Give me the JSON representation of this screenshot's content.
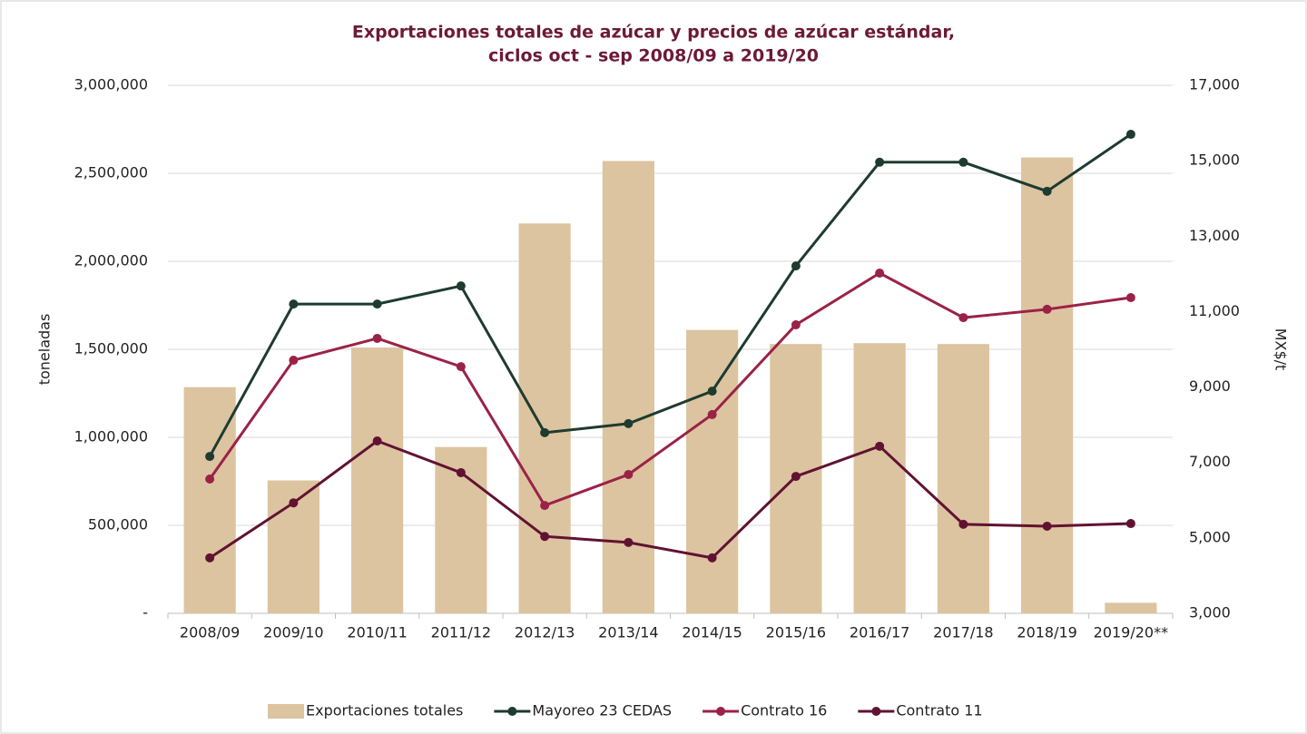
{
  "chart_data": {
    "type": "bar",
    "title": [
      "Exportaciones totales de azúcar y precios de azúcar estándar,",
      "ciclos oct - sep 2008/09 a 2019/20"
    ],
    "y_label": "toneladas",
    "y2_label": "MX$/t",
    "categories": [
      "2008/09",
      "2009/10",
      "2010/11",
      "2011/12",
      "2012/13",
      "2013/14",
      "2014/15",
      "2015/16",
      "2016/17",
      "2017/18",
      "2018/19",
      "2019/20**"
    ],
    "series": [
      {
        "name": "Exportaciones totales",
        "type": "bar",
        "axis": "y",
        "color": "#dcc4a0",
        "values": [
          1285000,
          755000,
          1510000,
          945000,
          2215000,
          2570000,
          1610000,
          1530000,
          1535000,
          1530000,
          2590000,
          60000
        ]
      },
      {
        "name": "Mayoreo 23 CEDAS",
        "type": "line",
        "axis": "y2",
        "color": "#1e3b2f",
        "values": [
          7160,
          11200,
          11200,
          11680,
          7790,
          8030,
          8890,
          12210,
          14960,
          14960,
          14190,
          15700
        ]
      },
      {
        "name": "Contrato 16",
        "type": "line",
        "axis": "y2",
        "color": "#9b2247",
        "values": [
          6560,
          9710,
          10290,
          9540,
          5860,
          6680,
          8270,
          10650,
          12020,
          10840,
          11060,
          11370
        ]
      },
      {
        "name": "Contrato 11",
        "type": "line",
        "axis": "y2",
        "color": "#611232",
        "values": [
          4470,
          5930,
          7570,
          6730,
          5040,
          4880,
          4470,
          6630,
          7430,
          5360,
          5310,
          5380
        ]
      }
    ],
    "ylim": [
      0,
      3000000
    ],
    "yticks": [
      {
        "value": 0,
        "label": "-"
      },
      {
        "value": 500000,
        "label": "500,000"
      },
      {
        "value": 1000000,
        "label": "1,000,000"
      },
      {
        "value": 1500000,
        "label": "1,500,000"
      },
      {
        "value": 2000000,
        "label": "2,000,000"
      },
      {
        "value": 2500000,
        "label": "2,500,000"
      },
      {
        "value": 3000000,
        "label": "3,000,000"
      }
    ],
    "y2lim": [
      3000,
      17000
    ],
    "y2ticks": [
      {
        "value": 3000,
        "label": "3,000"
      },
      {
        "value": 5000,
        "label": "5,000"
      },
      {
        "value": 7000,
        "label": "7,000"
      },
      {
        "value": 9000,
        "label": "9,000"
      },
      {
        "value": 11000,
        "label": "11,000"
      },
      {
        "value": 13000,
        "label": "13,000"
      },
      {
        "value": 15000,
        "label": "15,000"
      },
      {
        "value": 17000,
        "label": "17,000"
      }
    ],
    "grid": true,
    "legend": "bottom",
    "title_color": "#6d1a36"
  }
}
